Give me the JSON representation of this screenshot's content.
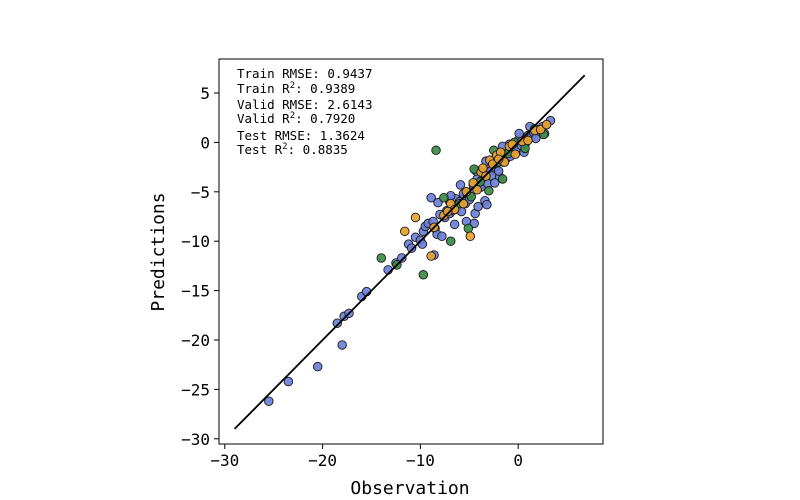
{
  "chart_data": {
    "type": "scatter",
    "xlabel": "Observation",
    "ylabel": "Predictions",
    "xlim": [
      -30,
      8.5
    ],
    "ylim": [
      -31,
      8.5
    ],
    "x_ticks": [
      -30,
      -20,
      -10,
      0
    ],
    "y_ticks": [
      5,
      0,
      -5,
      -10,
      -15,
      -20,
      -25,
      -30
    ],
    "x_tick_labels": [
      "−30",
      "−20",
      "−10",
      "0"
    ],
    "y_tick_labels": [
      "5",
      "0",
      "−5",
      "−10",
      "−15",
      "−20",
      "−25",
      "−30"
    ],
    "grid": false,
    "identity_line": {
      "from": [
        -29,
        -29
      ],
      "to": [
        6.8,
        6.8
      ],
      "color": "#000000"
    },
    "annotations": [
      {
        "id": "train-rmse",
        "prefix": "Train RMSE: ",
        "value": "0.9437"
      },
      {
        "id": "train-r2",
        "prefix": "Train R",
        "sup": "2",
        "suffix": ": ",
        "value": "0.9389"
      },
      {
        "id": "valid-rmse",
        "prefix": "Valid RMSE: ",
        "value": "2.6143"
      },
      {
        "id": "valid-r2",
        "prefix": "Valid R",
        "sup": "2",
        "suffix": ": ",
        "value": "0.7920"
      },
      {
        "id": "test-rmse",
        "prefix": "Test RMSE: ",
        "value": "1.3624"
      },
      {
        "id": "test-r2",
        "prefix": "Test R",
        "sup": "2",
        "suffix": ": ",
        "value": "0.8835"
      }
    ],
    "series": [
      {
        "id": "train",
        "color": "#6b7fd7",
        "points": [
          [
            -25.5,
            -26.2
          ],
          [
            -23.5,
            -24.2
          ],
          [
            -20.5,
            -22.7
          ],
          [
            -18.0,
            -20.5
          ],
          [
            -18.5,
            -18.3
          ],
          [
            -17.8,
            -17.6
          ],
          [
            -17.3,
            -17.3
          ],
          [
            -16.0,
            -15.6
          ],
          [
            -15.5,
            -15.1
          ],
          [
            -13.3,
            -12.9
          ],
          [
            -12.5,
            -12.2
          ],
          [
            -11.9,
            -11.7
          ],
          [
            -11.2,
            -10.3
          ],
          [
            -10.9,
            -10.7
          ],
          [
            -10.5,
            -9.6
          ],
          [
            -10.0,
            -9.9
          ],
          [
            -9.7,
            -9.0
          ],
          [
            -9.5,
            -8.5
          ],
          [
            -9.2,
            -8.2
          ],
          [
            -8.7,
            -8.0
          ],
          [
            -8.5,
            -8.7
          ],
          [
            -8.9,
            -5.6
          ],
          [
            -8.6,
            -11.4
          ],
          [
            -8.3,
            -9.3
          ],
          [
            -8.0,
            -7.3
          ],
          [
            -7.5,
            -7.6
          ],
          [
            -7.3,
            -6.9
          ],
          [
            -7.0,
            -7.2
          ],
          [
            -7.0,
            -6.0
          ],
          [
            -6.7,
            -6.9
          ],
          [
            -6.4,
            -5.7
          ],
          [
            -6.2,
            -6.5
          ],
          [
            -6.0,
            -6.0
          ],
          [
            -5.8,
            -7.0
          ],
          [
            -5.6,
            -5.2
          ],
          [
            -5.4,
            -6.2
          ],
          [
            -5.2,
            -5.3
          ],
          [
            -5.0,
            -5.8
          ],
          [
            -4.8,
            -5.0
          ],
          [
            -4.6,
            -4.3
          ],
          [
            -4.5,
            -8.2
          ],
          [
            -4.4,
            -7.2
          ],
          [
            -4.2,
            -3.7
          ],
          [
            -4.0,
            -4.6
          ],
          [
            -3.8,
            -4.5
          ],
          [
            -3.7,
            -3.8
          ],
          [
            -3.5,
            -3.2
          ],
          [
            -3.4,
            -5.9
          ],
          [
            -3.2,
            -6.3
          ],
          [
            -3.0,
            -2.7
          ],
          [
            -2.8,
            -2.9
          ],
          [
            -2.7,
            -3.4
          ],
          [
            -2.5,
            -1.8
          ],
          [
            -2.3,
            -2.5
          ],
          [
            -2.1,
            -1.9
          ],
          [
            -1.9,
            -3.5
          ],
          [
            -1.7,
            -1.5
          ],
          [
            -1.5,
            -2.0
          ],
          [
            -1.4,
            -1.2
          ],
          [
            -1.2,
            -1.6
          ],
          [
            -1.0,
            -0.6
          ],
          [
            -0.8,
            -1.4
          ],
          [
            -0.6,
            -0.9
          ],
          [
            -0.4,
            -0.3
          ],
          [
            -0.2,
            -0.6
          ],
          [
            0.0,
            0.2
          ],
          [
            0.3,
            -0.3
          ],
          [
            0.5,
            0.5
          ],
          [
            0.8,
            0.0
          ],
          [
            1.0,
            0.7
          ],
          [
            1.3,
            0.5
          ],
          [
            1.6,
            1.0
          ],
          [
            1.9,
            1.2
          ],
          [
            2.2,
            1.1
          ],
          [
            2.5,
            1.6
          ],
          [
            2.9,
            1.8
          ],
          [
            3.3,
            2.2
          ],
          [
            -6.5,
            -8.3
          ],
          [
            -7.8,
            -9.5
          ],
          [
            -5.9,
            -4.3
          ],
          [
            -4.1,
            -6.5
          ],
          [
            -3.1,
            -4.2
          ],
          [
            -2.0,
            -2.9
          ],
          [
            -0.9,
            -0.2
          ],
          [
            0.6,
            -1.0
          ],
          [
            1.8,
            0.4
          ],
          [
            2.7,
            0.9
          ],
          [
            -9.8,
            -10.3
          ],
          [
            -8.2,
            -6.1
          ],
          [
            -6.9,
            -5.4
          ],
          [
            -5.3,
            -8.0
          ],
          [
            -4.3,
            -2.9
          ],
          [
            -3.3,
            -1.9
          ],
          [
            -2.4,
            -4.1
          ],
          [
            -1.6,
            -0.4
          ],
          [
            0.1,
            0.9
          ],
          [
            1.2,
            1.6
          ]
        ]
      },
      {
        "id": "valid",
        "color": "#3c8c45",
        "points": [
          [
            -8.4,
            -0.8
          ],
          [
            -14.0,
            -11.7
          ],
          [
            -12.4,
            -12.4
          ],
          [
            -9.7,
            -13.4
          ],
          [
            -7.6,
            -5.6
          ],
          [
            -6.9,
            -10.0
          ],
          [
            -5.1,
            -8.7
          ],
          [
            -4.8,
            -5.5
          ],
          [
            -4.5,
            -2.7
          ],
          [
            -3.0,
            -4.9
          ],
          [
            -2.5,
            -0.8
          ],
          [
            -1.6,
            -3.7
          ],
          [
            -1.0,
            -1.1
          ],
          [
            -0.4,
            0.0
          ],
          [
            0.7,
            -0.6
          ],
          [
            1.7,
            1.4
          ],
          [
            2.6,
            0.8
          ],
          [
            -3.9,
            -4.0
          ],
          [
            -6.0,
            -6.2
          ],
          [
            -2.1,
            -2.0
          ]
        ]
      },
      {
        "id": "test",
        "color": "#e8a22c",
        "points": [
          [
            -11.6,
            -9.0
          ],
          [
            -10.5,
            -7.6
          ],
          [
            -8.9,
            -11.5
          ],
          [
            -8.6,
            -8.6
          ],
          [
            -7.6,
            -7.4
          ],
          [
            -6.9,
            -6.2
          ],
          [
            -6.5,
            -6.8
          ],
          [
            -5.6,
            -6.2
          ],
          [
            -4.9,
            -9.5
          ],
          [
            -4.6,
            -4.1
          ],
          [
            -4.2,
            -4.8
          ],
          [
            -3.8,
            -3.0
          ],
          [
            -3.3,
            -3.4
          ],
          [
            -2.9,
            -1.8
          ],
          [
            -2.6,
            -2.2
          ],
          [
            -2.2,
            -1.3
          ],
          [
            -1.8,
            -1.0
          ],
          [
            -1.4,
            -2.0
          ],
          [
            -0.9,
            -0.4
          ],
          [
            -0.3,
            -1.2
          ],
          [
            0.4,
            0.1
          ],
          [
            1.0,
            0.2
          ],
          [
            1.7,
            1.2
          ],
          [
            2.3,
            1.3
          ],
          [
            2.9,
            1.8
          ],
          [
            -5.3,
            -5.0
          ],
          [
            -3.6,
            -2.6
          ],
          [
            -2.0,
            -1.7
          ],
          [
            -7.2,
            -7.0
          ],
          [
            -0.6,
            -0.2
          ]
        ]
      }
    ]
  }
}
